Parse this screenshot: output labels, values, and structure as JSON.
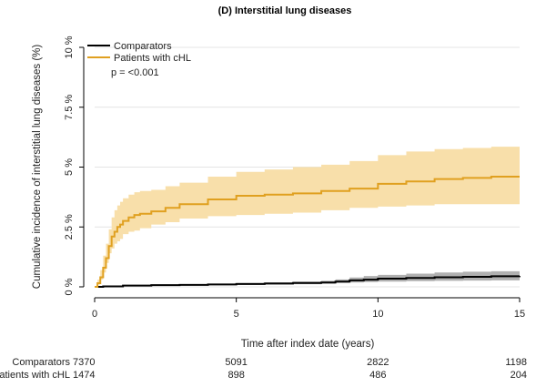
{
  "chart_data": {
    "type": "line",
    "title": "(D) Interstitial lung diseases",
    "xlabel": "Time after index date (years)",
    "ylabel": "Cumulative incidence of interstitial lung diseases (%)",
    "xlim": [
      0,
      15
    ],
    "ylim": [
      0,
      10
    ],
    "x_ticks": [
      0,
      5,
      10,
      15
    ],
    "x_tick_labels": [
      "0",
      "5",
      "10",
      "15"
    ],
    "y_ticks": [
      0,
      2.5,
      5,
      7.5,
      10
    ],
    "y_tick_labels": [
      "0 %",
      "2.5 %",
      "5 %",
      "7.5 %",
      "10 %"
    ],
    "grid": "horizontal",
    "legend_position": "top-left",
    "annotation": "p = <0.001",
    "series": [
      {
        "name": "Comparators",
        "color": "#000000",
        "ci_color": "#b0b0b0",
        "x": [
          0,
          0.3,
          1,
          2,
          3,
          4,
          5,
          6,
          7,
          8,
          8.5,
          9,
          9.5,
          10,
          11,
          12,
          13,
          14,
          15
        ],
        "values": [
          0,
          0.02,
          0.05,
          0.07,
          0.08,
          0.1,
          0.12,
          0.14,
          0.16,
          0.18,
          0.22,
          0.27,
          0.3,
          0.34,
          0.37,
          0.4,
          0.42,
          0.44,
          0.45
        ],
        "ci_lower": [
          0,
          0.0,
          0.02,
          0.04,
          0.05,
          0.06,
          0.07,
          0.09,
          0.1,
          0.11,
          0.13,
          0.16,
          0.18,
          0.2,
          0.22,
          0.24,
          0.25,
          0.26,
          0.27
        ],
        "ci_upper": [
          0,
          0.05,
          0.08,
          0.1,
          0.11,
          0.13,
          0.16,
          0.19,
          0.22,
          0.25,
          0.31,
          0.39,
          0.45,
          0.5,
          0.55,
          0.6,
          0.63,
          0.65,
          0.66
        ]
      },
      {
        "name": "Patients with cHL",
        "color": "#e0a020",
        "ci_color": "#f8dfaa",
        "x": [
          0,
          0.1,
          0.2,
          0.3,
          0.4,
          0.5,
          0.6,
          0.7,
          0.8,
          0.9,
          1.0,
          1.2,
          1.4,
          1.6,
          2.0,
          2.5,
          3.0,
          4.0,
          5.0,
          6.0,
          7.0,
          8.0,
          9.0,
          10.0,
          11.0,
          12.0,
          13.0,
          14.0,
          15.0
        ],
        "values": [
          0,
          0.15,
          0.4,
          0.8,
          1.2,
          1.7,
          2.1,
          2.3,
          2.5,
          2.6,
          2.75,
          2.9,
          3.0,
          3.05,
          3.15,
          3.3,
          3.45,
          3.65,
          3.8,
          3.85,
          3.9,
          4.0,
          4.1,
          4.3,
          4.4,
          4.5,
          4.55,
          4.6,
          4.6
        ],
        "ci_lower": [
          0,
          0.0,
          0.1,
          0.3,
          0.6,
          1.0,
          1.4,
          1.6,
          1.8,
          1.9,
          2.0,
          2.2,
          2.3,
          2.35,
          2.45,
          2.6,
          2.7,
          2.85,
          2.95,
          3.0,
          3.05,
          3.1,
          3.2,
          3.3,
          3.35,
          3.4,
          3.45,
          3.45,
          3.45
        ],
        "ci_upper": [
          0,
          0.3,
          0.7,
          1.3,
          1.8,
          2.4,
          2.9,
          3.2,
          3.4,
          3.55,
          3.7,
          3.85,
          3.95,
          4.0,
          4.05,
          4.2,
          4.35,
          4.6,
          4.8,
          4.9,
          5.0,
          5.1,
          5.25,
          5.5,
          5.65,
          5.75,
          5.8,
          5.85,
          5.85
        ]
      }
    ],
    "risk_table": {
      "x": [
        0,
        5,
        10,
        15
      ],
      "rows": [
        {
          "label": "Comparators",
          "color": "#000000",
          "values": [
            "7370",
            "5091",
            "2822",
            "1198"
          ]
        },
        {
          "label": "Patients with cHL",
          "color": "#e0a020",
          "values": [
            "1474",
            "898",
            "486",
            "204"
          ]
        }
      ]
    }
  }
}
